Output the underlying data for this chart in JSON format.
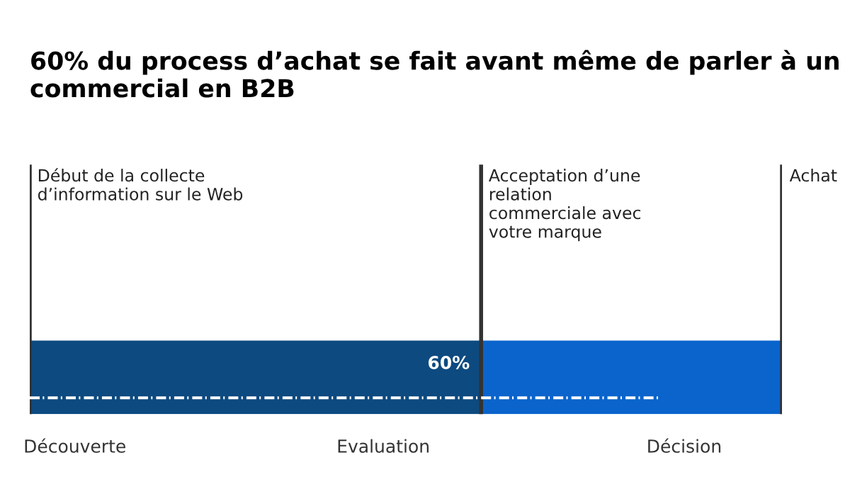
{
  "chart_data": {
    "type": "bar",
    "orientation": "horizontal",
    "stacked": true,
    "title": "60% du process d’achat se fait avant même de parler à un commercial en B2B",
    "categories": [
      null
    ],
    "series": [
      {
        "color": "#0d4a80",
        "values": [
          60
        ],
        "value_labels": [
          "60%"
        ]
      },
      {
        "color": "#0a64cc",
        "values": [
          40
        ]
      }
    ],
    "annotations": [
      "Découverte",
      "Evaluation",
      "Décision"
    ],
    "ref_lines": [
      {
        "axis": "x",
        "value": 0,
        "label": "Début de la collecte\nd’information sur le Web",
        "color": "#333333"
      },
      {
        "axis": "x",
        "value": 60,
        "label": "Acceptation d’une\nrelation\ncommerciale avec\nvotre marque",
        "color": "#333333"
      },
      {
        "axis": "x",
        "value": 100,
        "label": "Achat",
        "color": "#333333"
      }
    ],
    "legend": false
  }
}
